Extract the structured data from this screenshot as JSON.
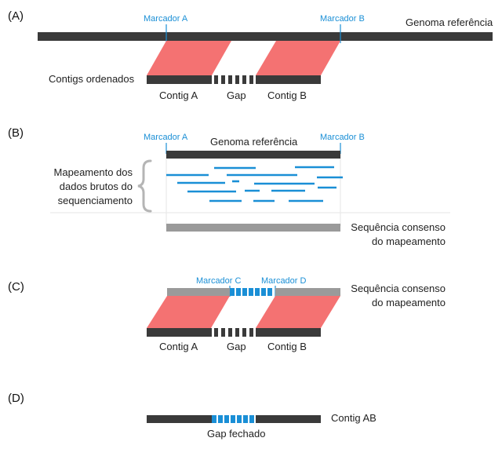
{
  "colors": {
    "bar": "#3a3a3a",
    "accent": "#1a8fd6",
    "contig_fill": "#f47272",
    "consensus": "#9a9a9a",
    "brace": "#b5b5b5",
    "divider": "#e6e6e6"
  },
  "panel_a": {
    "letter": "(A)",
    "marker_a": "Marcador A",
    "marker_b": "Marcador B",
    "reference_label": "Genoma referência",
    "ordered_contigs_label": "Contigs ordenados",
    "contig_a": "Contig A",
    "gap": "Gap",
    "contig_b": "Contig B"
  },
  "panel_b": {
    "letter": "(B)",
    "marker_a": "Marcador A",
    "marker_b": "Marcador B",
    "reference_label": "Genoma referência",
    "mapping_line1": "Mapeamento dos",
    "mapping_line2": "dados brutos do",
    "mapping_line3": "sequenciamento",
    "consensus_line1": "Sequência consenso",
    "consensus_line2": "do mapeamento"
  },
  "panel_c": {
    "letter": "(C)",
    "marker_c": "Marcador C",
    "marker_d": "Marcador D",
    "consensus_line1": "Sequência consenso",
    "consensus_line2": "do mapeamento",
    "contig_a": "Contig A",
    "gap": "Gap",
    "contig_b": "Contig B"
  },
  "panel_d": {
    "letter": "(D)",
    "contig_ab": "Contig AB",
    "gap_closed": "Gap fechado"
  }
}
